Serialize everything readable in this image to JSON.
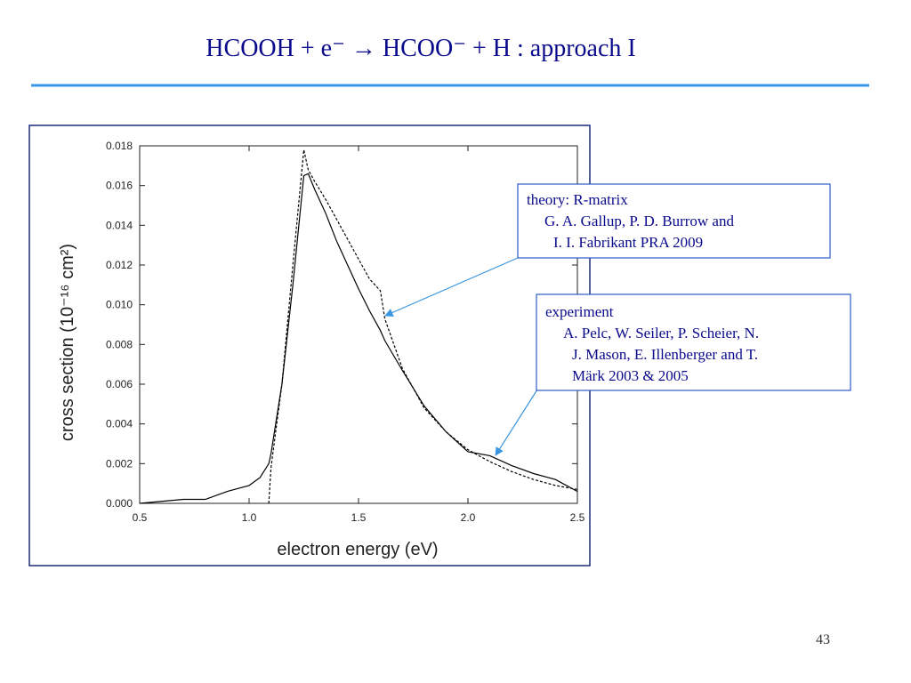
{
  "slide": {
    "title": "HCOOH + e⁻  →  HCOO⁻  +  H   :   approach I",
    "page_number": "43",
    "annotations": [
      {
        "lines": [
          "theory: R-matrix",
          "G. A. Gallup, P. D. Burrow and",
          "I. I. Fabrikant PRA 2009"
        ]
      },
      {
        "lines": [
          "experiment",
          "A. Pelc, W. Seiler, P. Scheier, N.",
          "J. Mason, E. Illenberger and T.",
          "Märk 2003 & 2005"
        ]
      }
    ]
  },
  "chart_data": {
    "type": "line",
    "xlabel": "electron energy (eV)",
    "ylabel": "cross section (10⁻¹⁶ cm²)",
    "x": [
      0.5,
      0.6,
      0.7,
      0.8,
      0.9,
      1.0,
      1.05,
      1.09,
      1.1,
      1.15,
      1.2,
      1.25,
      1.27,
      1.3,
      1.35,
      1.4,
      1.45,
      1.5,
      1.55,
      1.6,
      1.62,
      1.7,
      1.8,
      1.9,
      2.0,
      2.1,
      2.2,
      2.3,
      2.4,
      2.5
    ],
    "series": [
      {
        "color": "#000000",
        "dash": "solid",
        "values": [
          0,
          0.0001,
          0.0002,
          0.0002,
          0.0006,
          0.0009,
          0.0013,
          0.002,
          0.0025,
          0.006,
          0.011,
          0.0165,
          0.0166,
          0.0158,
          0.0146,
          0.0132,
          0.012,
          0.0108,
          0.0097,
          0.0087,
          0.0082,
          0.0067,
          0.0049,
          0.0036,
          0.0026,
          0.0024,
          0.0019,
          0.0015,
          0.0012,
          0.0006
        ]
      },
      {
        "color": "#000000",
        "dash": "dashed",
        "values": [
          null,
          null,
          null,
          null,
          null,
          null,
          null,
          0,
          0.0018,
          0.006,
          0.012,
          0.0178,
          0.0168,
          0.0162,
          0.0153,
          0.0143,
          0.0133,
          0.0123,
          0.0113,
          0.0107,
          0.0093,
          0.0068,
          0.0048,
          0.0036,
          0.0027,
          0.0021,
          0.0016,
          0.0012,
          0.0009,
          0.0007
        ]
      }
    ],
    "xlim": [
      0.5,
      2.5
    ],
    "xticks": [
      0.5,
      {
        "value": 1,
        "label": "1.0"
      },
      1.5,
      {
        "value": 2,
        "label": "2.0"
      },
      2.5
    ],
    "ylim": [
      0,
      0.018
    ],
    "yticks": [
      {
        "value": 0,
        "label": "0.000"
      },
      {
        "value": 0.002,
        "label": "0.002"
      },
      {
        "value": 0.004,
        "label": "0.004"
      },
      {
        "value": 0.006,
        "label": "0.006"
      },
      {
        "value": 0.008,
        "label": "0.008"
      },
      {
        "value": 0.01,
        "label": "0.010"
      },
      {
        "value": 0.012,
        "label": "0.012"
      },
      {
        "value": 0.014,
        "label": "0.014"
      },
      {
        "value": 0.016,
        "label": "0.016"
      },
      {
        "value": 0.018,
        "label": "0.018"
      }
    ],
    "grid": false
  }
}
